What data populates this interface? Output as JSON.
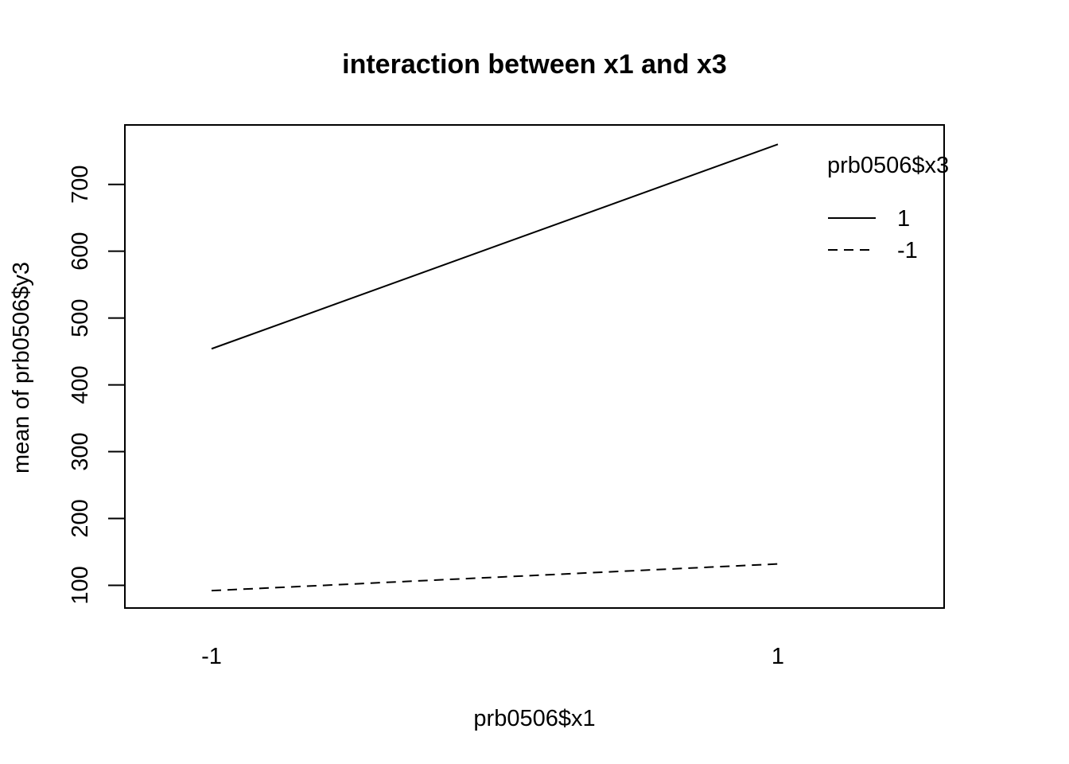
{
  "chart_data": {
    "type": "line",
    "title": "interaction between x1 and x3",
    "xlabel": "prb0506$x1",
    "ylabel": "mean of  prb0506$y3",
    "categories": [
      "-1",
      "1"
    ],
    "yticks": [
      100,
      200,
      300,
      400,
      500,
      600,
      700
    ],
    "ylim": [
      66,
      789
    ],
    "legend": {
      "title": "prb0506$x3",
      "position": "top-right",
      "entries": [
        "1",
        "-1"
      ]
    },
    "series": [
      {
        "name": "1",
        "values": [
          454,
          760
        ],
        "line_style": "solid"
      },
      {
        "name": "-1",
        "values": [
          92,
          132
        ],
        "line_style": "dashed"
      }
    ],
    "grid": false
  }
}
